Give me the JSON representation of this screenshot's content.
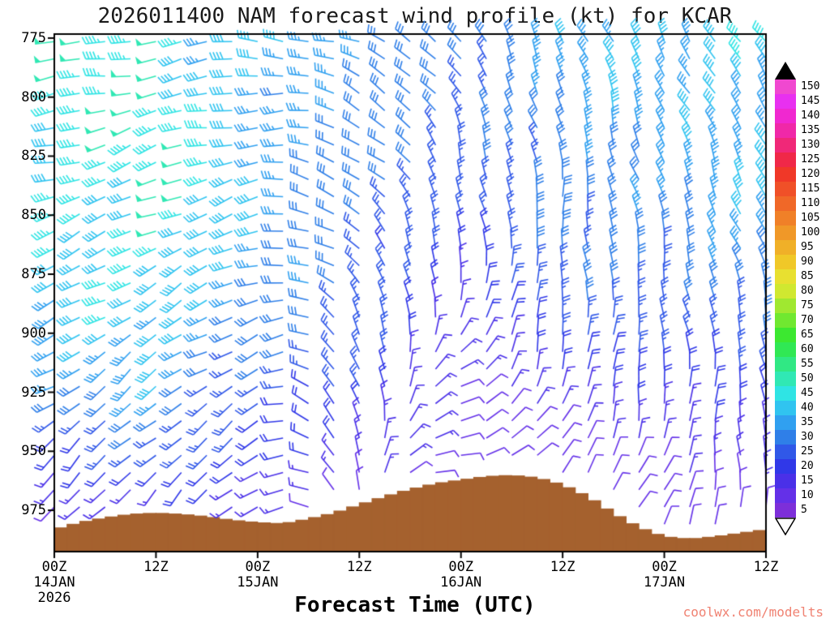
{
  "figure": {
    "title": "2026011400 NAM forecast wind profile (kt) for KCAR",
    "xlabel": "Forecast Time (UTC)",
    "watermark": "coolwx.com/modelts"
  },
  "chart_data": {
    "type": "wind_barb_profile",
    "title": "2026011400 NAM forecast wind profile (kt) for KCAR",
    "xlabel": "Forecast Time (UTC)",
    "units": "kt",
    "x_axis": {
      "unit": "hours",
      "range": [
        0,
        84
      ],
      "ticks": [
        {
          "hour": 0,
          "lines": [
            "00Z",
            "14JAN",
            "2026"
          ]
        },
        {
          "hour": 12,
          "lines": [
            "12Z"
          ]
        },
        {
          "hour": 24,
          "lines": [
            "00Z",
            "15JAN"
          ]
        },
        {
          "hour": 36,
          "lines": [
            "12Z"
          ]
        },
        {
          "hour": 48,
          "lines": [
            "00Z",
            "16JAN"
          ]
        },
        {
          "hour": 60,
          "lines": [
            "12Z"
          ]
        },
        {
          "hour": 72,
          "lines": [
            "00Z",
            "17JAN"
          ]
        },
        {
          "hour": 84,
          "lines": [
            "12Z"
          ]
        }
      ]
    },
    "y_axis": {
      "unit": "hPa",
      "range": [
        773,
        993
      ],
      "ticks": [
        775,
        800,
        825,
        850,
        875,
        900,
        925,
        950,
        975
      ]
    },
    "colorbar": {
      "levels": [
        5,
        10,
        15,
        20,
        25,
        30,
        35,
        40,
        45,
        50,
        55,
        60,
        65,
        70,
        75,
        80,
        85,
        90,
        95,
        100,
        105,
        110,
        115,
        120,
        125,
        130,
        135,
        140,
        145,
        150
      ],
      "colors": [
        "#7d2fd9",
        "#6430e8",
        "#4a30e8",
        "#3038e8",
        "#3058e8",
        "#2f7fe8",
        "#30a0f0",
        "#30c4f0",
        "#2fe4e4",
        "#30e8b4",
        "#30e884",
        "#30e854",
        "#3ce830",
        "#70e830",
        "#a0e830",
        "#d0e830",
        "#e8e030",
        "#f0c828",
        "#f0b028",
        "#f09828",
        "#f08028",
        "#f06828",
        "#f05028",
        "#f03828",
        "#f02848",
        "#f02878",
        "#f028a8",
        "#f028d0",
        "#e830f0",
        "#f048d0"
      ],
      "over_arrow_color": "#000000",
      "under_arrow_color": "#ffffff"
    },
    "terrain": {
      "color": "#a5612e",
      "surface_pressure": [
        {
          "t": 0,
          "p": 983
        },
        {
          "t": 3,
          "p": 980
        },
        {
          "t": 6,
          "p": 978
        },
        {
          "t": 9,
          "p": 976.5
        },
        {
          "t": 12,
          "p": 976
        },
        {
          "t": 15,
          "p": 976.5
        },
        {
          "t": 18,
          "p": 977.5
        },
        {
          "t": 21,
          "p": 979
        },
        {
          "t": 24,
          "p": 980
        },
        {
          "t": 27,
          "p": 980.5
        },
        {
          "t": 30,
          "p": 978.5
        },
        {
          "t": 33,
          "p": 976
        },
        {
          "t": 36,
          "p": 972.5
        },
        {
          "t": 39,
          "p": 969
        },
        {
          "t": 42,
          "p": 966
        },
        {
          "t": 45,
          "p": 963.5
        },
        {
          "t": 48,
          "p": 962
        },
        {
          "t": 51,
          "p": 960.5
        },
        {
          "t": 54,
          "p": 960
        },
        {
          "t": 57,
          "p": 961
        },
        {
          "t": 60,
          "p": 964
        },
        {
          "t": 63,
          "p": 969
        },
        {
          "t": 66,
          "p": 976
        },
        {
          "t": 69,
          "p": 982
        },
        {
          "t": 72,
          "p": 986
        },
        {
          "t": 75,
          "p": 987
        },
        {
          "t": 78,
          "p": 986
        },
        {
          "t": 81,
          "p": 984.5
        },
        {
          "t": 84,
          "p": 983
        }
      ]
    },
    "wind_grid": {
      "hours": [
        0,
        12,
        24,
        36,
        48,
        60,
        72,
        84
      ],
      "pressures": [
        775,
        800,
        825,
        850,
        875,
        900,
        925,
        950,
        975
      ],
      "barb_interval_hours": 3,
      "barb_interval_hpa": 7.3,
      "speed_kt": [
        [
          45,
          45,
          40,
          32,
          30,
          35,
          38,
          45
        ],
        [
          46,
          46,
          38,
          30,
          28,
          34,
          35,
          40
        ],
        [
          45,
          47,
          38,
          30,
          25,
          32,
          33,
          38
        ],
        [
          42,
          46,
          35,
          28,
          22,
          30,
          32,
          35
        ],
        [
          40,
          45,
          33,
          27,
          18,
          28,
          30,
          32
        ],
        [
          35,
          40,
          30,
          25,
          15,
          22,
          25,
          28
        ],
        [
          30,
          33,
          25,
          20,
          12,
          15,
          18,
          22
        ],
        [
          22,
          25,
          20,
          15,
          10,
          10,
          12,
          15
        ],
        [
          12,
          14,
          13,
          11,
          8,
          7,
          8,
          10
        ]
      ],
      "direction_deg": [
        [
          265,
          260,
          270,
          290,
          320,
          340,
          330,
          320
        ],
        [
          260,
          255,
          265,
          295,
          330,
          345,
          335,
          325
        ],
        [
          255,
          250,
          260,
          300,
          340,
          350,
          340,
          330
        ],
        [
          250,
          245,
          255,
          310,
          350,
          355,
          345,
          335
        ],
        [
          245,
          240,
          250,
          320,
          360,
          360,
          350,
          340
        ],
        [
          240,
          235,
          245,
          330,
          30,
          5,
          355,
          345
        ],
        [
          235,
          230,
          240,
          340,
          60,
          15,
          5,
          350
        ],
        [
          230,
          225,
          235,
          350,
          90,
          30,
          15,
          355
        ],
        [
          225,
          220,
          230,
          355,
          120,
          45,
          25,
          360
        ]
      ]
    }
  }
}
